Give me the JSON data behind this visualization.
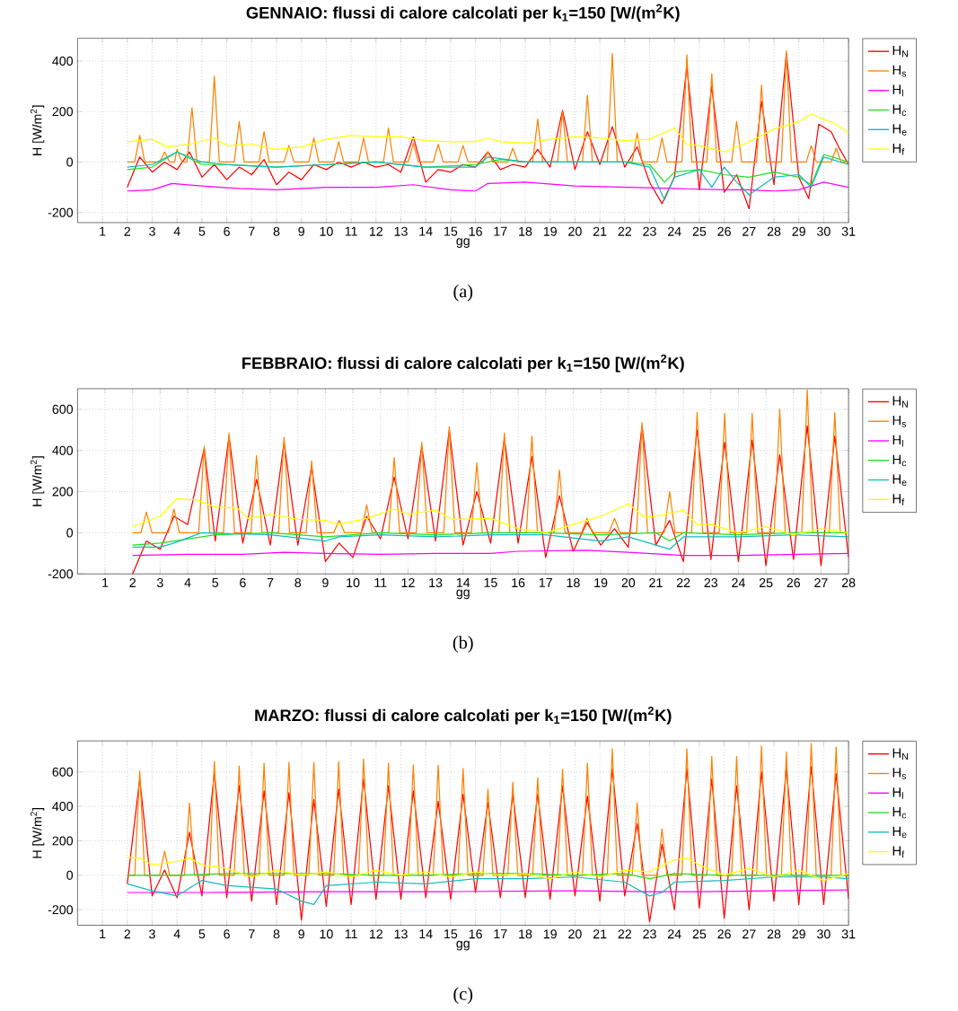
{
  "chart_data": [
    {
      "type": "line",
      "title": "GENNAIO: flussi di calore calcolati per k$_{1}$=150 [W/(m$^{2}$K)",
      "xlabel": "gg",
      "ylabel": "H [W/m$^{2}$]",
      "annotations": [
        "(a)"
      ],
      "xlim": [
        0,
        31
      ],
      "ylim": [
        -240,
        490
      ],
      "xticks": [
        1,
        2,
        3,
        4,
        5,
        6,
        7,
        8,
        9,
        10,
        11,
        12,
        13,
        14,
        15,
        16,
        17,
        18,
        19,
        20,
        21,
        22,
        23,
        24,
        25,
        26,
        27,
        28,
        29,
        30,
        31
      ],
      "yticks": [
        -200,
        0,
        200,
        400
      ],
      "grid": true,
      "legend": "right",
      "series": [
        {
          "name": "H$_{N}$",
          "color": "#ff0000",
          "x": [
            2,
            2.5,
            3,
            3.5,
            4,
            4.5,
            5,
            5.5,
            6,
            6.5,
            7,
            7.5,
            8,
            8.5,
            9,
            9.5,
            10,
            10.5,
            11,
            11.5,
            12,
            12.5,
            13,
            13.5,
            14,
            14.5,
            15,
            15.5,
            16,
            16.5,
            17,
            17.5,
            18,
            18.5,
            19,
            19.5,
            20,
            20.5,
            21,
            21.5,
            22,
            22.5,
            23,
            23.5,
            24,
            24.5,
            25,
            25.5,
            26,
            26.5,
            27,
            27.5,
            28,
            28.5,
            29,
            29.4,
            29.8,
            30.3,
            30.6,
            31
          ],
          "values": [
            -100,
            20,
            -40,
            0,
            -30,
            40,
            -60,
            -10,
            -70,
            -20,
            -50,
            10,
            -90,
            -40,
            -70,
            -10,
            -30,
            0,
            -20,
            0,
            -20,
            -10,
            -40,
            100,
            -80,
            -30,
            -40,
            -10,
            -20,
            40,
            -30,
            -10,
            -20,
            50,
            -20,
            205,
            -30,
            120,
            -10,
            140,
            -20,
            60,
            -80,
            -165,
            -60,
            380,
            -110,
            300,
            -120,
            -50,
            -185,
            240,
            -90,
            430,
            -60,
            -145,
            150,
            120,
            60,
            -10
          ]
        },
        {
          "name": "H$_{s}$",
          "color": "#ff8000",
          "x": [
            2,
            2.3,
            2.5,
            2.7,
            3.3,
            3.5,
            3.7,
            3.9,
            4.0,
            4.2,
            4.4,
            4.6,
            4.8,
            5.3,
            5.5,
            5.7,
            6.3,
            6.5,
            6.7,
            7.3,
            7.5,
            7.7,
            8.3,
            8.5,
            8.7,
            9.3,
            9.5,
            9.7,
            10.3,
            10.5,
            10.7,
            11.3,
            11.5,
            11.7,
            12.3,
            12.5,
            12.7,
            13.3,
            13.5,
            13.7,
            14.3,
            14.5,
            14.7,
            15.3,
            15.5,
            15.7,
            16.3,
            16.5,
            16.7,
            17.3,
            17.5,
            17.7,
            18.3,
            18.5,
            18.7,
            19.3,
            19.5,
            19.7,
            20.3,
            20.5,
            20.7,
            21.3,
            21.5,
            21.7,
            22.3,
            22.5,
            22.7,
            23.3,
            23.5,
            23.7,
            24.3,
            24.5,
            24.7,
            25.3,
            25.5,
            25.7,
            26.3,
            26.5,
            26.7,
            27.3,
            27.5,
            27.7,
            28.3,
            28.5,
            28.7,
            29.3,
            29.5,
            29.7,
            30.3,
            30.5,
            30.7,
            31
          ],
          "values": [
            0,
            0,
            105,
            0,
            0,
            40,
            0,
            0,
            50,
            0,
            0,
            215,
            0,
            0,
            340,
            0,
            0,
            160,
            0,
            0,
            120,
            0,
            0,
            65,
            0,
            0,
            95,
            0,
            0,
            80,
            0,
            0,
            95,
            0,
            0,
            135,
            0,
            0,
            75,
            0,
            0,
            70,
            0,
            0,
            65,
            0,
            0,
            40,
            0,
            0,
            55,
            0,
            0,
            170,
            0,
            0,
            200,
            0,
            0,
            265,
            0,
            0,
            430,
            0,
            0,
            115,
            0,
            0,
            95,
            0,
            0,
            425,
            0,
            0,
            350,
            0,
            0,
            160,
            0,
            0,
            305,
            0,
            0,
            440,
            0,
            0,
            65,
            0,
            0,
            55,
            0,
            0
          ]
        },
        {
          "name": "H$_{l}$",
          "color": "#ff00ff",
          "x": [
            2,
            3,
            3.8,
            5,
            6.5,
            8,
            10,
            12,
            13.5,
            15,
            16,
            16.5,
            18,
            20,
            22,
            24,
            26,
            27,
            28,
            29,
            30,
            31
          ],
          "values": [
            -115,
            -110,
            -85,
            -95,
            -105,
            -110,
            -100,
            -100,
            -90,
            -110,
            -115,
            -85,
            -80,
            -95,
            -100,
            -105,
            -110,
            -110,
            -115,
            -110,
            -80,
            -100
          ]
        },
        {
          "name": "H$_{c}$",
          "color": "#22dd22",
          "x": [
            2,
            3,
            4,
            5,
            6,
            8,
            10,
            12,
            14,
            16,
            17,
            18,
            20,
            22,
            23,
            23.6,
            24,
            25,
            26,
            27,
            28,
            29,
            29.5,
            30,
            31
          ],
          "values": [
            -30,
            -20,
            40,
            -10,
            -10,
            -20,
            -10,
            0,
            -20,
            -10,
            10,
            0,
            0,
            0,
            -10,
            -80,
            -40,
            -30,
            -50,
            -60,
            -40,
            -60,
            -90,
            30,
            0
          ]
        },
        {
          "name": "H$_{e}$",
          "color": "#11bbbb",
          "x": [
            2,
            3,
            4,
            5,
            6,
            8,
            10,
            12,
            14,
            16,
            16.5,
            18,
            20,
            22,
            23,
            23.6,
            24,
            25,
            25.5,
            26,
            26.5,
            27,
            28,
            29,
            29.5,
            30,
            31
          ],
          "values": [
            -20,
            -10,
            40,
            0,
            -10,
            -20,
            -10,
            0,
            -20,
            -20,
            20,
            0,
            0,
            0,
            -20,
            -150,
            -60,
            -30,
            -100,
            -20,
            -80,
            -130,
            -60,
            -50,
            -100,
            20,
            -10
          ]
        },
        {
          "name": "H$_{f}$",
          "color": "#ffff00",
          "x": [
            2,
            3,
            3.6,
            4.5,
            5.5,
            6,
            7,
            8,
            9,
            10,
            11,
            12,
            13,
            14,
            15,
            16,
            16.5,
            17,
            18,
            19,
            20,
            21,
            22,
            23,
            24,
            24.5,
            25,
            26,
            27,
            28,
            29,
            29.5,
            30.5,
            31
          ],
          "values": [
            80,
            90,
            60,
            70,
            95,
            65,
            70,
            50,
            60,
            90,
            105,
            100,
            100,
            85,
            80,
            80,
            95,
            80,
            75,
            90,
            100,
            95,
            85,
            90,
            135,
            70,
            65,
            40,
            80,
            130,
            160,
            190,
            150,
            115
          ]
        }
      ]
    },
    {
      "type": "line",
      "title": "FEBBRAIO: flussi di calore calcolati per k$_{1}$=150 [W/(m$^{2}$K)",
      "xlabel": "gg",
      "ylabel": "H [W/m$^{2}$]",
      "annotations": [
        "(b)"
      ],
      "xlim": [
        0,
        28
      ],
      "ylim": [
        -200,
        700
      ],
      "xticks": [
        1,
        2,
        3,
        4,
        5,
        6,
        7,
        8,
        9,
        10,
        11,
        12,
        13,
        14,
        15,
        16,
        17,
        18,
        19,
        20,
        21,
        22,
        23,
        24,
        25,
        26,
        27,
        28
      ],
      "yticks": [
        -200,
        0,
        200,
        400,
        600
      ],
      "grid": true,
      "legend": "right",
      "series": [
        {
          "name": "H$_{N}$",
          "color": "#ff0000",
          "x": [
            2,
            2.5,
            3,
            3.5,
            4,
            4.6,
            5,
            5.5,
            6,
            6.5,
            7,
            7.5,
            8,
            8.5,
            9,
            9.5,
            10,
            10.5,
            11,
            11.5,
            12,
            12.5,
            13,
            13.5,
            14,
            14.5,
            15,
            15.5,
            16,
            16.5,
            17,
            17.5,
            18,
            18.5,
            19,
            19.5,
            20,
            20.5,
            21,
            21.5,
            22,
            22.5,
            23,
            23.5,
            24,
            24.5,
            25,
            25.5,
            26,
            26.5,
            27,
            27.5,
            28
          ],
          "values": [
            -200,
            -40,
            -80,
            80,
            40,
            410,
            -40,
            470,
            -50,
            260,
            -60,
            440,
            -60,
            320,
            -140,
            -50,
            -120,
            80,
            -30,
            270,
            -30,
            420,
            -40,
            500,
            -60,
            200,
            -50,
            460,
            -50,
            370,
            -120,
            180,
            -90,
            50,
            -60,
            20,
            -70,
            520,
            -60,
            60,
            -140,
            500,
            -130,
            440,
            -140,
            450,
            -160,
            380,
            -130,
            520,
            -160,
            470,
            -120
          ]
        },
        {
          "name": "H$_{s}$",
          "color": "#ff8000",
          "x": [
            2,
            2.3,
            2.5,
            2.7,
            3.3,
            3.5,
            3.7,
            4.4,
            4.6,
            4.8,
            5.3,
            5.5,
            5.7,
            6.3,
            6.5,
            6.7,
            7.3,
            7.5,
            7.7,
            8.3,
            8.5,
            8.7,
            9.3,
            9.5,
            9.7,
            10.3,
            10.5,
            10.7,
            11.3,
            11.5,
            11.7,
            12.3,
            12.5,
            12.7,
            13.3,
            13.5,
            13.7,
            14.3,
            14.5,
            14.7,
            15.3,
            15.5,
            15.7,
            16.3,
            16.5,
            16.7,
            17.3,
            17.5,
            17.7,
            18.3,
            18.5,
            18.7,
            19.3,
            19.5,
            19.7,
            20.3,
            20.5,
            20.7,
            21.3,
            21.5,
            21.7,
            22.3,
            22.5,
            22.7,
            23.3,
            23.5,
            23.7,
            24.3,
            24.5,
            24.7,
            25.3,
            25.5,
            25.7,
            26.3,
            26.5,
            26.7,
            27.3,
            27.5,
            27.7,
            28
          ],
          "values": [
            0,
            0,
            100,
            0,
            0,
            115,
            0,
            0,
            420,
            0,
            0,
            485,
            0,
            0,
            375,
            0,
            0,
            465,
            0,
            0,
            350,
            0,
            0,
            60,
            0,
            0,
            135,
            0,
            0,
            365,
            0,
            0,
            440,
            0,
            0,
            515,
            0,
            0,
            340,
            0,
            0,
            485,
            0,
            0,
            470,
            0,
            0,
            305,
            0,
            0,
            70,
            0,
            0,
            70,
            0,
            0,
            535,
            0,
            0,
            200,
            0,
            0,
            585,
            0,
            0,
            580,
            0,
            0,
            580,
            0,
            0,
            600,
            0,
            0,
            695,
            0,
            0,
            585,
            0,
            0
          ]
        },
        {
          "name": "H$_{l}$",
          "color": "#ff00ff",
          "x": [
            2,
            4,
            6,
            7.5,
            9,
            11,
            13,
            15,
            16,
            18.5,
            20,
            22,
            24,
            26,
            28
          ],
          "values": [
            -110,
            -105,
            -105,
            -95,
            -100,
            -105,
            -100,
            -100,
            -90,
            -85,
            -95,
            -110,
            -110,
            -105,
            -100
          ]
        },
        {
          "name": "H$_{c}$",
          "color": "#22dd22",
          "x": [
            2,
            3,
            3.5,
            5,
            7,
            9,
            11,
            13,
            15,
            17,
            19,
            21,
            21.5,
            22,
            24,
            26,
            28
          ],
          "values": [
            -60,
            -50,
            -40,
            -10,
            0,
            -20,
            0,
            -10,
            0,
            0,
            -10,
            0,
            -40,
            0,
            -10,
            0,
            0
          ]
        },
        {
          "name": "H$_{e}$",
          "color": "#11bbbb",
          "x": [
            2,
            3,
            3.5,
            4.5,
            7,
            9,
            9.5,
            11,
            13,
            15,
            17,
            19,
            20,
            21.5,
            22,
            24,
            26,
            28
          ],
          "values": [
            -70,
            -70,
            -50,
            0,
            -10,
            -40,
            -20,
            -10,
            -20,
            -10,
            -10,
            -40,
            -20,
            -80,
            -20,
            -20,
            -10,
            -20
          ]
        },
        {
          "name": "H$_{f}$",
          "color": "#ffff00",
          "x": [
            2,
            3,
            3.6,
            4.3,
            5,
            5.8,
            6.2,
            7,
            8,
            9,
            9.5,
            10.5,
            11.5,
            12,
            13,
            13.6,
            15,
            16,
            17,
            18,
            19,
            20,
            20.6,
            21,
            22,
            22.5,
            23,
            24,
            25,
            26,
            27,
            28
          ],
          "values": [
            30,
            80,
            165,
            160,
            125,
            120,
            70,
            90,
            65,
            60,
            40,
            70,
            115,
            90,
            110,
            65,
            70,
            20,
            0,
            40,
            80,
            140,
            75,
            80,
            110,
            40,
            40,
            0,
            30,
            -10,
            20,
            0
          ]
        }
      ]
    },
    {
      "type": "line",
      "title": "MARZO: flussi di calore calcolati per k$_{1}$=150 [W/(m$^{2}$K)",
      "xlabel": "gg",
      "ylabel": "H [W/m$^{2}$]",
      "annotations": [
        "(c)"
      ],
      "xlim": [
        0,
        31
      ],
      "ylim": [
        -290,
        780
      ],
      "xticks": [
        1,
        2,
        3,
        4,
        5,
        6,
        7,
        8,
        9,
        10,
        11,
        12,
        13,
        14,
        15,
        16,
        17,
        18,
        19,
        20,
        21,
        22,
        23,
        24,
        25,
        26,
        27,
        28,
        29,
        30,
        31
      ],
      "yticks": [
        -200,
        0,
        200,
        400,
        600
      ],
      "grid": true,
      "legend": "right",
      "series": [
        {
          "name": "H$_{N}$",
          "color": "#ff0000",
          "x": [
            2,
            2.5,
            3,
            3.5,
            4,
            4.5,
            5,
            5.5,
            6,
            6.5,
            7,
            7.5,
            8,
            8.5,
            9,
            9.5,
            10,
            10.5,
            11,
            11.5,
            12,
            12.5,
            13,
            13.5,
            14,
            14.5,
            15,
            15.5,
            16,
            16.5,
            17,
            17.5,
            18,
            18.5,
            19,
            19.5,
            20,
            20.5,
            21,
            21.5,
            22,
            22.5,
            23,
            23.5,
            24,
            24.5,
            25,
            25.5,
            26,
            26.5,
            27,
            27.5,
            28,
            28.5,
            29,
            29.5,
            30,
            30.5,
            31
          ],
          "values": [
            -50,
            560,
            -120,
            30,
            -130,
            250,
            -120,
            600,
            -130,
            520,
            -150,
            490,
            -170,
            480,
            -260,
            440,
            -180,
            500,
            -170,
            560,
            -140,
            520,
            -140,
            490,
            -130,
            430,
            -140,
            470,
            -100,
            420,
            -130,
            470,
            -130,
            470,
            -140,
            520,
            -120,
            460,
            -150,
            620,
            -120,
            300,
            -270,
            180,
            -200,
            620,
            -190,
            560,
            -250,
            520,
            -200,
            600,
            -150,
            620,
            -170,
            630,
            -170,
            590,
            -140
          ]
        },
        {
          "name": "H$_{s}$",
          "color": "#ff8000",
          "x": [
            2,
            2.3,
            2.5,
            2.7,
            3.3,
            3.5,
            3.7,
            4.3,
            4.5,
            4.7,
            5.3,
            5.5,
            5.7,
            6.3,
            6.5,
            6.7,
            7.3,
            7.5,
            7.7,
            8.3,
            8.5,
            8.7,
            9.3,
            9.5,
            9.7,
            10.3,
            10.5,
            10.7,
            11.3,
            11.5,
            11.7,
            12.3,
            12.5,
            12.7,
            13.3,
            13.5,
            13.7,
            14.3,
            14.5,
            14.7,
            15.3,
            15.5,
            15.7,
            16.3,
            16.5,
            16.7,
            17.3,
            17.5,
            17.7,
            18.3,
            18.5,
            18.7,
            19.3,
            19.5,
            19.7,
            20.3,
            20.5,
            20.7,
            21.3,
            21.5,
            21.7,
            22.3,
            22.5,
            22.7,
            23.3,
            23.5,
            23.7,
            24.3,
            24.5,
            24.7,
            25.3,
            25.5,
            25.7,
            26.3,
            26.5,
            26.7,
            27.3,
            27.5,
            27.7,
            28.3,
            28.5,
            28.7,
            29.3,
            29.5,
            29.7,
            30.3,
            30.5,
            30.7,
            31
          ],
          "values": [
            0,
            0,
            605,
            0,
            0,
            140,
            0,
            0,
            420,
            0,
            0,
            660,
            0,
            0,
            635,
            0,
            0,
            650,
            0,
            0,
            655,
            0,
            0,
            655,
            0,
            0,
            660,
            0,
            0,
            675,
            0,
            0,
            650,
            0,
            0,
            640,
            0,
            0,
            640,
            0,
            0,
            620,
            0,
            0,
            500,
            0,
            0,
            540,
            0,
            0,
            565,
            0,
            0,
            615,
            0,
            0,
            650,
            0,
            0,
            735,
            0,
            0,
            420,
            0,
            0,
            270,
            0,
            0,
            735,
            0,
            0,
            690,
            0,
            0,
            690,
            0,
            0,
            750,
            0,
            0,
            715,
            0,
            0,
            765,
            0,
            0,
            745,
            0,
            0
          ]
        },
        {
          "name": "H$_{l}$",
          "color": "#ff00ff",
          "x": [
            2,
            5,
            10,
            15,
            20,
            23,
            25,
            28,
            31
          ],
          "values": [
            -100,
            -100,
            -95,
            -95,
            -90,
            -95,
            -95,
            -90,
            -85
          ]
        },
        {
          "name": "H$_{c}$",
          "color": "#22dd22",
          "x": [
            2,
            4,
            6,
            8,
            10,
            12,
            14,
            16,
            18,
            20,
            22,
            23,
            24,
            26,
            28,
            30,
            31
          ],
          "values": [
            0,
            0,
            10,
            10,
            10,
            0,
            0,
            10,
            10,
            0,
            10,
            -20,
            10,
            0,
            0,
            0,
            0
          ]
        },
        {
          "name": "H$_{e}$",
          "color": "#11bbbb",
          "x": [
            2,
            3,
            4,
            5,
            6,
            8,
            9,
            9.5,
            10,
            12,
            14,
            16,
            18,
            20,
            22,
            23,
            23.5,
            24,
            26,
            28,
            30,
            31
          ],
          "values": [
            -50,
            -90,
            -120,
            -30,
            -60,
            -80,
            -150,
            -170,
            -60,
            -40,
            -50,
            -20,
            -20,
            -10,
            -40,
            -120,
            -100,
            -40,
            -30,
            -10,
            -10,
            -20
          ]
        },
        {
          "name": "H$_{f}$",
          "color": "#ffff00",
          "x": [
            2,
            2.5,
            3,
            4,
            4.5,
            5,
            6,
            7,
            8,
            9,
            10,
            11,
            12,
            13,
            14,
            15,
            16,
            17,
            18,
            19,
            20,
            21,
            22,
            23,
            24,
            24.5,
            25,
            26,
            27,
            28,
            29,
            30,
            31
          ],
          "values": [
            105,
            100,
            60,
            80,
            100,
            60,
            40,
            -10,
            30,
            0,
            20,
            -10,
            30,
            0,
            20,
            -10,
            20,
            0,
            10,
            -20,
            20,
            -10,
            30,
            20,
            90,
            100,
            60,
            0,
            40,
            -10,
            30,
            -30,
            10
          ]
        }
      ]
    }
  ]
}
